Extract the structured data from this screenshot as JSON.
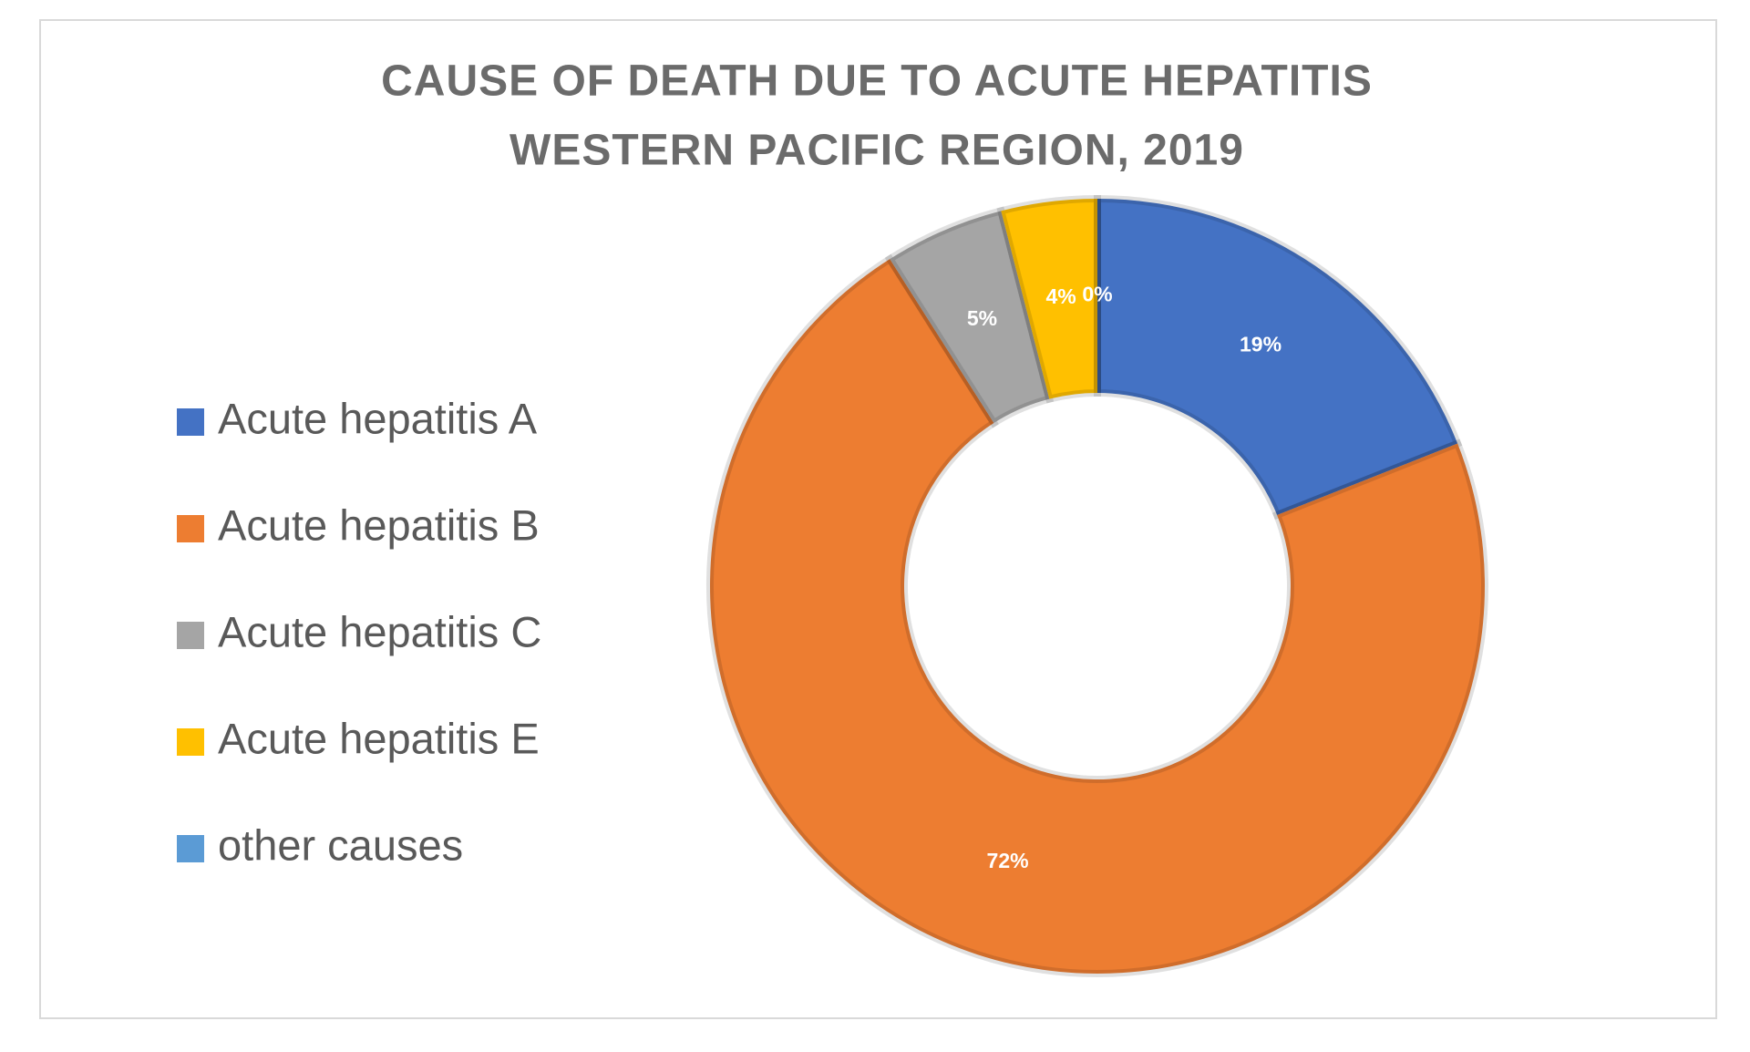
{
  "chart_data": {
    "type": "donut",
    "title": "CAUSE OF DEATH DUE TO ACUTE HEPATITIS",
    "subtitle": "WESTERN PACIFIC REGION, 2019",
    "legend": "left",
    "series": [
      {
        "name": "Acute hepatitis A",
        "color": "#4472c4",
        "values": [
          19
        ],
        "value_labels": [
          "19%"
        ]
      },
      {
        "name": "Acute hepatitis B",
        "color": "#ed7d31",
        "values": [
          72
        ],
        "value_labels": [
          "72%"
        ]
      },
      {
        "name": "Acute hepatitis C",
        "color": "#a5a5a5",
        "values": [
          5
        ],
        "value_labels": [
          "5%"
        ]
      },
      {
        "name": "Acute hepatitis E",
        "color": "#ffc000",
        "values": [
          4
        ],
        "value_labels": [
          "4%"
        ]
      },
      {
        "name": "other causes",
        "color": "#5b9bd5",
        "values": [
          0
        ],
        "value_labels": [
          "0%"
        ]
      }
    ]
  }
}
